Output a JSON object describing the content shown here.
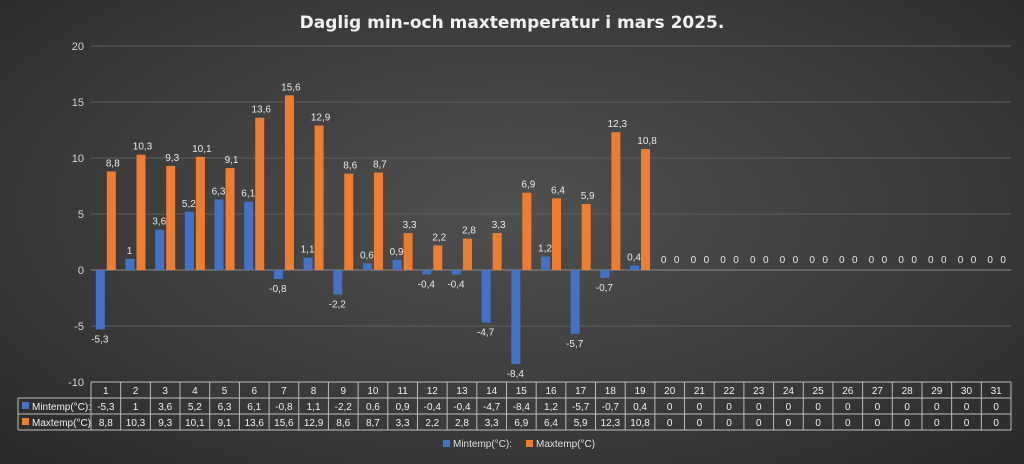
{
  "chart_data": {
    "type": "bar",
    "title": "Daglig min-och maxtemperatur i mars 2025.",
    "categories": [
      "1",
      "2",
      "3",
      "4",
      "5",
      "6",
      "7",
      "8",
      "9",
      "10",
      "11",
      "12",
      "13",
      "14",
      "15",
      "16",
      "17",
      "18",
      "19",
      "20",
      "21",
      "22",
      "23",
      "24",
      "25",
      "26",
      "27",
      "28",
      "29",
      "30",
      "31"
    ],
    "series": [
      {
        "name": "Mintemp(°C):",
        "color": "#4472c4",
        "values": [
          -5.3,
          1,
          3.6,
          5.2,
          6.3,
          6.1,
          -0.8,
          1.1,
          -2.2,
          0.6,
          0.9,
          -0.4,
          -0.4,
          -4.7,
          -8.4,
          1.2,
          -5.7,
          -0.7,
          0.4,
          0,
          0,
          0,
          0,
          0,
          0,
          0,
          0,
          0,
          0,
          0,
          0
        ],
        "labels": [
          "-5,3",
          "1",
          "3,6",
          "5,2",
          "6,3",
          "6,1",
          "-0,8",
          "1,1",
          "-2,2",
          "0,6",
          "0,9",
          "-0,4",
          "-0,4",
          "-4,7",
          "-8,4",
          "1,2",
          "-5,7",
          "-0,7",
          "0,4",
          "0",
          "0",
          "0",
          "0",
          "0",
          "0",
          "0",
          "0",
          "0",
          "0",
          "0",
          "0"
        ]
      },
      {
        "name": "Maxtemp(°C)",
        "color": "#ed7d31",
        "values": [
          8.8,
          10.3,
          9.3,
          10.1,
          9.1,
          13.6,
          15.6,
          12.9,
          8.6,
          8.7,
          3.3,
          2.2,
          2.8,
          3.3,
          6.9,
          6.4,
          5.9,
          12.3,
          10.8,
          0,
          0,
          0,
          0,
          0,
          0,
          0,
          0,
          0,
          0,
          0,
          0
        ],
        "labels": [
          "8,8",
          "10,3",
          "9,3",
          "10,1",
          "9,1",
          "13,6",
          "15,6",
          "12,9",
          "8,6",
          "8,7",
          "3,3",
          "2,2",
          "2,8",
          "3,3",
          "6,9",
          "6,4",
          "5,9",
          "12,3",
          "10,8",
          "0",
          "0",
          "0",
          "0",
          "0",
          "0",
          "0",
          "0",
          "0",
          "0",
          "0",
          "0"
        ]
      }
    ],
    "ylim": [
      -10,
      20
    ],
    "yticks": [
      "-10",
      "-5",
      "0",
      "5",
      "10",
      "15",
      "20"
    ],
    "grid": true,
    "data_table": true,
    "legend_position": "bottom"
  }
}
